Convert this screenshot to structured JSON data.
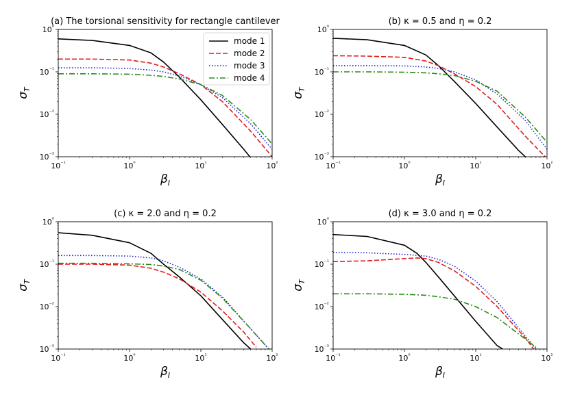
{
  "figure": {
    "colors": {
      "mode 1": "#000000",
      "mode 2": "#e41a1c",
      "mode 3": "#2020d0",
      "mode 4": "#2a8a1a"
    }
  },
  "chart_data": [
    {
      "type": "line",
      "title": "(a) The torsional sensitivity for rectangle cantilever",
      "xlabel": "βI",
      "ylabel": "σT",
      "xscale": "log",
      "yscale": "log",
      "xlim": [
        0.1,
        100
      ],
      "ylim": [
        0.001,
        1
      ],
      "xticks": [
        "10⁻¹",
        "10⁰",
        "10¹",
        "10²"
      ],
      "yticks": [
        "10⁻³",
        "10⁻²",
        "10⁻¹",
        "10⁰"
      ],
      "legend": {
        "location": "top-right",
        "entries": [
          "mode 1",
          "mode 2",
          "mode 3",
          "mode 4"
        ]
      },
      "series": [
        {
          "name": "mode 1",
          "style": "solid",
          "x": [
            0.1,
            0.3,
            1,
            2,
            3,
            5,
            10,
            20,
            40,
            60
          ],
          "y": [
            0.6,
            0.55,
            0.42,
            0.28,
            0.17,
            0.075,
            0.022,
            0.0058,
            0.0015,
            0.00065
          ]
        },
        {
          "name": "mode 2",
          "style": "dashed",
          "x": [
            0.1,
            0.3,
            1,
            2,
            3,
            5,
            10,
            20,
            50,
            100
          ],
          "y": [
            0.2,
            0.2,
            0.19,
            0.16,
            0.13,
            0.09,
            0.05,
            0.02,
            0.004,
            0.001
          ]
        },
        {
          "name": "mode 3",
          "style": "dotted",
          "x": [
            0.1,
            0.3,
            1,
            2,
            3,
            5,
            10,
            20,
            50,
            100
          ],
          "y": [
            0.125,
            0.125,
            0.12,
            0.11,
            0.1,
            0.08,
            0.05,
            0.025,
            0.006,
            0.0015
          ]
        },
        {
          "name": "mode 4",
          "style": "dashdot",
          "x": [
            0.1,
            0.3,
            1,
            2,
            3,
            5,
            10,
            20,
            50,
            100
          ],
          "y": [
            0.09,
            0.09,
            0.088,
            0.083,
            0.078,
            0.068,
            0.05,
            0.028,
            0.0075,
            0.002
          ]
        }
      ]
    },
    {
      "type": "line",
      "title": "(b) κ = 0.5 and η = 0.2",
      "xlabel": "βI",
      "ylabel": "σT",
      "xscale": "log",
      "yscale": "log",
      "xlim": [
        0.1,
        100
      ],
      "ylim": [
        0.001,
        1
      ],
      "xticks": [
        "10⁻¹",
        "10⁰",
        "10¹",
        "10²"
      ],
      "yticks": [
        "10⁻³",
        "10⁻²",
        "10⁻¹",
        "10⁰"
      ],
      "series": [
        {
          "name": "mode 1",
          "style": "solid",
          "x": [
            0.1,
            0.3,
            1,
            2,
            3,
            5,
            10,
            20,
            40,
            55
          ],
          "y": [
            0.62,
            0.57,
            0.42,
            0.25,
            0.14,
            0.06,
            0.018,
            0.005,
            0.0014,
            0.00085
          ]
        },
        {
          "name": "mode 2",
          "style": "dashed",
          "x": [
            0.1,
            0.3,
            1,
            2,
            3,
            5,
            10,
            20,
            50,
            100
          ],
          "y": [
            0.24,
            0.235,
            0.22,
            0.18,
            0.14,
            0.09,
            0.045,
            0.017,
            0.003,
            0.0009
          ]
        },
        {
          "name": "mode 3",
          "style": "dotted",
          "x": [
            0.1,
            0.3,
            1,
            2,
            3,
            5,
            10,
            20,
            50,
            100
          ],
          "y": [
            0.14,
            0.14,
            0.138,
            0.13,
            0.12,
            0.1,
            0.065,
            0.03,
            0.007,
            0.0015
          ]
        },
        {
          "name": "mode 4",
          "style": "dashdot",
          "x": [
            0.1,
            0.3,
            1,
            2,
            3,
            5,
            10,
            20,
            50,
            100
          ],
          "y": [
            0.1,
            0.1,
            0.098,
            0.095,
            0.09,
            0.082,
            0.06,
            0.035,
            0.0085,
            0.0022
          ]
        }
      ]
    },
    {
      "type": "line",
      "title": "(c) κ = 2.0 and η = 0.2",
      "xlabel": "βI",
      "ylabel": "σT",
      "xscale": "log",
      "yscale": "log",
      "xlim": [
        0.1,
        100
      ],
      "ylim": [
        0.001,
        1
      ],
      "xticks": [
        "10⁻¹",
        "10⁰",
        "10¹",
        "10²"
      ],
      "yticks": [
        "10⁻³",
        "10⁻²",
        "10⁻¹",
        "10⁰"
      ],
      "series": [
        {
          "name": "mode 1",
          "style": "solid",
          "x": [
            0.1,
            0.3,
            1,
            2,
            3,
            5,
            10,
            20,
            40,
            50
          ],
          "y": [
            0.55,
            0.48,
            0.32,
            0.18,
            0.1,
            0.05,
            0.018,
            0.005,
            0.0014,
            0.001
          ]
        },
        {
          "name": "mode 2",
          "style": "dashed",
          "x": [
            0.1,
            0.3,
            1,
            2,
            3,
            5,
            10,
            20,
            40,
            60
          ],
          "y": [
            0.1,
            0.1,
            0.095,
            0.08,
            0.065,
            0.045,
            0.022,
            0.008,
            0.0025,
            0.0011
          ]
        },
        {
          "name": "mode 3",
          "style": "dotted",
          "x": [
            0.1,
            0.3,
            1,
            2,
            3,
            5,
            10,
            20,
            50,
            90
          ],
          "y": [
            0.16,
            0.16,
            0.155,
            0.14,
            0.12,
            0.085,
            0.045,
            0.017,
            0.003,
            0.001
          ]
        },
        {
          "name": "mode 4",
          "style": "dashdot",
          "x": [
            0.1,
            0.3,
            1,
            2,
            3,
            5,
            10,
            20,
            50,
            90
          ],
          "y": [
            0.105,
            0.105,
            0.102,
            0.098,
            0.09,
            0.075,
            0.042,
            0.016,
            0.003,
            0.001
          ]
        }
      ]
    },
    {
      "type": "line",
      "title": "(d) κ = 3.0 and η = 0.2",
      "xlabel": "βI",
      "ylabel": "σT",
      "xscale": "log",
      "yscale": "log",
      "xlim": [
        0.1,
        100
      ],
      "ylim": [
        0.001,
        1
      ],
      "xticks": [
        "10⁻¹",
        "10⁰",
        "10¹",
        "10²"
      ],
      "yticks": [
        "10⁻³",
        "10⁻²",
        "10⁻¹",
        "10⁰"
      ],
      "series": [
        {
          "name": "mode 1",
          "style": "solid",
          "x": [
            0.1,
            0.3,
            1,
            1.5,
            2,
            3,
            5,
            10,
            20,
            24
          ],
          "y": [
            0.5,
            0.45,
            0.28,
            0.18,
            0.11,
            0.05,
            0.018,
            0.0045,
            0.0012,
            0.001
          ]
        },
        {
          "name": "mode 2",
          "style": "dashed",
          "x": [
            0.1,
            0.3,
            1,
            1.5,
            2,
            3,
            5,
            10,
            20,
            50,
            65
          ],
          "y": [
            0.115,
            0.12,
            0.135,
            0.14,
            0.135,
            0.11,
            0.07,
            0.03,
            0.01,
            0.0018,
            0.001
          ]
        },
        {
          "name": "mode 3",
          "style": "dotted",
          "x": [
            0.1,
            0.3,
            1,
            2,
            3,
            5,
            10,
            20,
            50,
            70
          ],
          "y": [
            0.19,
            0.185,
            0.17,
            0.155,
            0.13,
            0.09,
            0.04,
            0.013,
            0.002,
            0.001
          ]
        },
        {
          "name": "mode 4",
          "style": "dashdot",
          "x": [
            0.1,
            0.3,
            1,
            2,
            3,
            5,
            10,
            20,
            50,
            75
          ],
          "y": [
            0.02,
            0.02,
            0.0195,
            0.0185,
            0.017,
            0.015,
            0.01,
            0.0055,
            0.0017,
            0.001
          ]
        }
      ]
    }
  ]
}
